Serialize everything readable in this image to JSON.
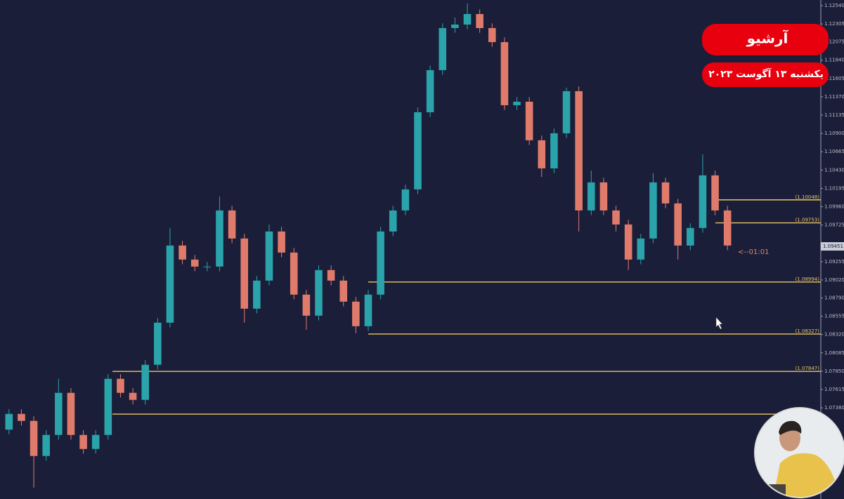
{
  "chart_data": {
    "type": "candlestick",
    "up_color": "#2aa3ab",
    "down_color": "#e07b6c",
    "level_color": "#e9c663",
    "open": [
      1.071,
      1.07302,
      1.07212,
      1.06762,
      1.07032,
      1.07572,
      1.07032,
      1.06852,
      1.07032,
      1.07752,
      1.07572,
      1.07482,
      1.07932,
      1.08472,
      1.09462,
      1.09282,
      1.09192,
      1.09192,
      1.09912,
      1.09552,
      1.08652,
      1.09012,
      1.09642,
      1.09372,
      1.08832,
      1.08562,
      1.09147,
      1.09012,
      1.08742,
      1.08427,
      1.08832,
      1.09642,
      1.09912,
      1.10182,
      1.11172,
      1.11712,
      1.12252,
      1.12297,
      1.12432,
      1.12252,
      1.12072,
      1.11262,
      1.11307,
      1.10812,
      1.10452,
      1.10902,
      1.11442,
      1.09912,
      1.10272,
      1.09912,
      1.09732,
      1.09282,
      1.09552,
      1.10272,
      1.10002,
      1.09462,
      1.09687,
      1.10362,
      1.09912
    ],
    "high": [
      1.07362,
      1.07362,
      1.07272,
      1.07092,
      1.07752,
      1.07632,
      1.07092,
      1.07092,
      1.07812,
      1.07812,
      1.07632,
      1.07992,
      1.08532,
      1.09687,
      1.09522,
      1.09342,
      1.09252,
      1.10092,
      1.09972,
      1.09612,
      1.09072,
      1.09732,
      1.09702,
      1.09432,
      1.08892,
      1.09207,
      1.09207,
      1.09072,
      1.08802,
      1.08892,
      1.09702,
      1.09972,
      1.10242,
      1.11232,
      1.11772,
      1.12312,
      1.12387,
      1.12567,
      1.12492,
      1.12312,
      1.12132,
      1.11367,
      1.11367,
      1.10872,
      1.10962,
      1.11487,
      1.11502,
      1.10422,
      1.10332,
      1.09972,
      1.09792,
      1.09612,
      1.10392,
      1.10332,
      1.10062,
      1.09747,
      1.10632,
      1.10422,
      1.09972
    ],
    "low": [
      1.0704,
      1.07152,
      1.06357,
      1.06702,
      1.06972,
      1.06972,
      1.06792,
      1.06792,
      1.06972,
      1.07512,
      1.07422,
      1.07422,
      1.07872,
      1.08412,
      1.09222,
      1.09132,
      1.09132,
      1.09132,
      1.09492,
      1.08472,
      1.08592,
      1.08952,
      1.09312,
      1.08772,
      1.08382,
      1.08502,
      1.08952,
      1.08682,
      1.08337,
      1.08367,
      1.08772,
      1.09582,
      1.09852,
      1.10122,
      1.11112,
      1.11652,
      1.12192,
      1.12237,
      1.12192,
      1.12012,
      1.11202,
      1.11202,
      1.10752,
      1.10342,
      1.10392,
      1.10842,
      1.09642,
      1.09852,
      1.09852,
      1.09642,
      1.09147,
      1.09222,
      1.09492,
      1.09942,
      1.09282,
      1.09402,
      1.09627,
      1.09852,
      1.09402
    ],
    "close": [
      1.07302,
      1.07212,
      1.06762,
      1.07032,
      1.07572,
      1.07032,
      1.06852,
      1.07032,
      1.07752,
      1.07572,
      1.07482,
      1.07932,
      1.08472,
      1.09462,
      1.09282,
      1.09192,
      1.09192,
      1.09912,
      1.09552,
      1.08652,
      1.09012,
      1.09642,
      1.09372,
      1.08832,
      1.08562,
      1.09147,
      1.09012,
      1.08742,
      1.08427,
      1.08832,
      1.09642,
      1.09912,
      1.10182,
      1.11172,
      1.11712,
      1.12252,
      1.12297,
      1.12432,
      1.12252,
      1.12072,
      1.11262,
      1.11307,
      1.10812,
      1.10452,
      1.10902,
      1.11442,
      1.09912,
      1.10272,
      1.09912,
      1.09732,
      1.09282,
      1.09552,
      1.10272,
      1.10002,
      1.09462,
      1.09687,
      1.10362,
      1.09912,
      1.09462
    ],
    "ylim": [
      1.0621,
      1.12612
    ],
    "yticks": [
      {
        "value": 1.1254,
        "label": "1.12540"
      },
      1.12305,
      1.12075,
      {
        "value": 1.1184,
        "label": "1.11840"
      },
      1.11605,
      {
        "value": 1.1137,
        "label": "1.11370"
      },
      1.11135,
      {
        "value": 1.109,
        "label": "1.10900"
      },
      1.10665,
      {
        "value": 1.1043,
        "label": "1.10430"
      },
      1.10195,
      {
        "value": 1.0996,
        "label": "1.09960"
      },
      1.09725,
      1.09255,
      {
        "value": 1.0902,
        "label": "1.09020"
      },
      {
        "value": 1.0879,
        "label": "1.08790"
      },
      1.08555,
      {
        "value": 1.0832,
        "label": "1.08320"
      },
      1.08085,
      {
        "value": 1.0785,
        "label": "1.07850"
      },
      1.07615,
      {
        "value": 1.0738,
        "label": "1.07380"
      }
    ],
    "levels": [
      {
        "value": 1.10048,
        "label": "(1.10048)"
      },
      {
        "value": 1.09753,
        "label": "(1.09753)"
      },
      {
        "value": 1.08994,
        "label": "(1.08994)"
      },
      {
        "value": 1.08327,
        "label": "(1.08327)"
      },
      {
        "value": 1.07847,
        "label": "(1.07847)"
      }
    ],
    "extra_levels": [
      1.07299
    ],
    "current_price": 1.09451,
    "timer": "<--01:01"
  },
  "overlay": {
    "badge": "آرشیو",
    "date": "یکشنبه ۱۳ آگوست ۲۰۲۳"
  }
}
